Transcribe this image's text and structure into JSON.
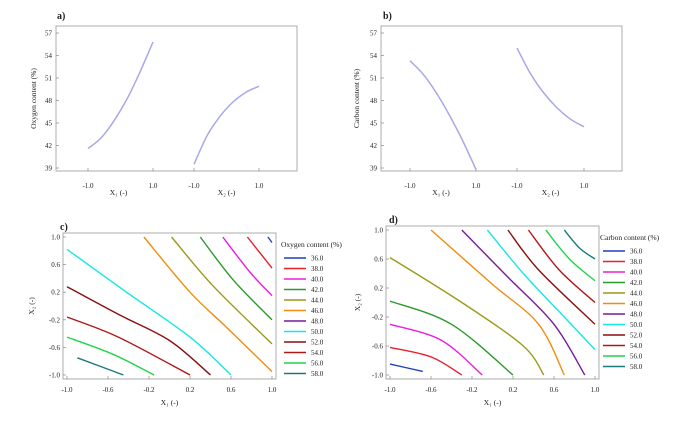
{
  "legend_colors": {
    "36.0": "#1f3fbf",
    "38.0": "#e8202a",
    "40.0": "#e81ee0",
    "42.0": "#2a9a2a",
    "44.0": "#9a9a1a",
    "46.0": "#f08c10",
    "48.0": "#7a1a9a",
    "50.0": "#18e6e6",
    "52.0": "#8a0f0f",
    "54.0": "#b01818",
    "56.0": "#22d44a",
    "58.0": "#1a7a7a"
  },
  "chart_data": [
    {
      "id": "a",
      "type": "line",
      "label": "a)",
      "ylabel": "Oxygen content (%)",
      "ylim": [
        39,
        57
      ],
      "yticks": [
        "39",
        "42",
        "45",
        "48",
        "51",
        "54",
        "57"
      ],
      "xticklabels": [
        "-1.0",
        "1.0",
        "-1.0",
        "1.0"
      ],
      "xlabels": [
        "X₁ (-)",
        "X₂ (-)"
      ],
      "series": [
        {
          "name": "X1",
          "x": [
            -1.0,
            -0.6,
            -0.2,
            0.2,
            0.6,
            1.0
          ],
          "y": [
            41.6,
            43.0,
            45.3,
            48.2,
            51.8,
            55.8
          ]
        },
        {
          "name": "X2",
          "x": [
            -1.0,
            -0.6,
            -0.2,
            0.2,
            0.6,
            1.0
          ],
          "y": [
            39.5,
            43.3,
            45.9,
            47.8,
            49.1,
            49.9
          ]
        }
      ]
    },
    {
      "id": "b",
      "type": "line",
      "label": "b)",
      "ylabel": "Carbon content (%)",
      "ylim": [
        39,
        57
      ],
      "yticks": [
        "39",
        "42",
        "45",
        "48",
        "51",
        "54",
        "57"
      ],
      "xticklabels": [
        "-1.0",
        "1.0",
        "-1.0",
        "1.0"
      ],
      "xlabels": [
        "X₁ (-)",
        "X₂ (-)"
      ],
      "series": [
        {
          "name": "X1",
          "x": [
            -1.0,
            -0.6,
            -0.2,
            0.2,
            0.6,
            1.0
          ],
          "y": [
            53.3,
            51.5,
            49.0,
            46.0,
            42.6,
            38.8
          ]
        },
        {
          "name": "X2",
          "x": [
            -1.0,
            -0.6,
            -0.2,
            0.2,
            0.6,
            1.0
          ],
          "y": [
            55.0,
            51.6,
            49.0,
            47.0,
            45.5,
            44.5
          ]
        }
      ]
    },
    {
      "id": "c",
      "type": "contour",
      "label": "c)",
      "xlabel": "X₁ (-)",
      "ylabel": "X₂ (-)",
      "xlim": [
        -1,
        1
      ],
      "ylim": [
        -1,
        1
      ],
      "xticks": [
        "-1.0",
        "-0.6",
        "-0.2",
        "0.2",
        "0.6",
        "1.0"
      ],
      "yticks": [
        "-1.0",
        "-0.6",
        "-0.2",
        "0.2",
        "0.6",
        "1.0"
      ],
      "legend_title": "Oxygen content (%)",
      "levels": [
        "36.0",
        "38.0",
        "40.0",
        "42.0",
        "44.0",
        "46.0",
        "48.0",
        "50.0",
        "52.0",
        "54.0",
        "56.0",
        "58.0"
      ],
      "lines": [
        {
          "level": "58.0",
          "points": [
            [
              -0.9,
              -0.75
            ],
            [
              -0.45,
              -1.0
            ]
          ]
        },
        {
          "level": "56.0",
          "points": [
            [
              -1.0,
              -0.45
            ],
            [
              -0.55,
              -0.7
            ],
            [
              -0.15,
              -1.0
            ]
          ]
        },
        {
          "level": "54.0",
          "points": [
            [
              -1.0,
              -0.16
            ],
            [
              -0.5,
              -0.45
            ],
            [
              0.2,
              -1.0
            ]
          ]
        },
        {
          "level": "52.0",
          "points": [
            [
              -1.0,
              0.28
            ],
            [
              -0.5,
              -0.12
            ],
            [
              0.0,
              -0.5
            ],
            [
              0.4,
              -1.0
            ]
          ]
        },
        {
          "level": "50.0",
          "points": [
            [
              -1.0,
              0.82
            ],
            [
              -0.4,
              0.18
            ],
            [
              0.2,
              -0.45
            ],
            [
              0.6,
              -1.0
            ]
          ]
        },
        {
          "level": "46.0",
          "points": [
            [
              -0.25,
              1.0
            ],
            [
              0.2,
              0.2
            ],
            [
              0.55,
              -0.3
            ],
            [
              1.0,
              -0.95
            ]
          ]
        },
        {
          "level": "44.0",
          "points": [
            [
              0.02,
              1.0
            ],
            [
              0.42,
              0.3
            ],
            [
              1.0,
              -0.55
            ]
          ]
        },
        {
          "level": "42.0",
          "points": [
            [
              0.3,
              1.0
            ],
            [
              0.62,
              0.38
            ],
            [
              1.0,
              -0.2
            ]
          ]
        },
        {
          "level": "40.0",
          "points": [
            [
              0.52,
              1.0
            ],
            [
              0.78,
              0.5
            ],
            [
              1.0,
              0.15
            ]
          ]
        },
        {
          "level": "38.0",
          "points": [
            [
              0.76,
              1.0
            ],
            [
              1.0,
              0.55
            ]
          ]
        },
        {
          "level": "36.0",
          "points": [
            [
              0.96,
              1.0
            ],
            [
              1.0,
              0.92
            ]
          ]
        }
      ]
    },
    {
      "id": "d",
      "type": "contour",
      "label": "d)",
      "xlabel": "X₁ (-)",
      "ylabel": "X₂ (-)",
      "xlim": [
        -1,
        1
      ],
      "ylim": [
        -1,
        1
      ],
      "xticks": [
        "-1.0",
        "-0.6",
        "-0.2",
        "0.2",
        "0.6",
        "1.0"
      ],
      "yticks": [
        "-1.0",
        "-0.6",
        "-0.2",
        "0.2",
        "0.6",
        "1.0"
      ],
      "legend_title": "Carbon content (%)",
      "levels": [
        "36.0",
        "38.0",
        "40.0",
        "42.0",
        "44.0",
        "46.0",
        "48.0",
        "50.0",
        "52.0",
        "54.0",
        "56.0",
        "58.0"
      ],
      "lines": [
        {
          "level": "36.0",
          "points": [
            [
              -1.0,
              -0.85
            ],
            [
              -0.68,
              -0.95
            ]
          ]
        },
        {
          "level": "38.0",
          "points": [
            [
              -1.0,
              -0.62
            ],
            [
              -0.6,
              -0.75
            ],
            [
              -0.3,
              -1.0
            ]
          ]
        },
        {
          "level": "40.0",
          "points": [
            [
              -1.0,
              -0.3
            ],
            [
              -0.5,
              -0.52
            ],
            [
              -0.1,
              -1.0
            ]
          ]
        },
        {
          "level": "42.0",
          "points": [
            [
              -1.0,
              0.02
            ],
            [
              -0.4,
              -0.3
            ],
            [
              0.2,
              -1.0
            ]
          ]
        },
        {
          "level": "44.0",
          "points": [
            [
              -1.0,
              0.62
            ],
            [
              -0.3,
              0.0
            ],
            [
              0.3,
              -0.6
            ],
            [
              0.5,
              -1.0
            ]
          ]
        },
        {
          "level": "46.0",
          "points": [
            [
              -0.6,
              1.0
            ],
            [
              0.0,
              0.25
            ],
            [
              0.45,
              -0.3
            ],
            [
              0.7,
              -1.0
            ]
          ]
        },
        {
          "level": "48.0",
          "points": [
            [
              -0.3,
              1.0
            ],
            [
              0.15,
              0.35
            ],
            [
              0.6,
              -0.3
            ],
            [
              0.9,
              -1.0
            ]
          ]
        },
        {
          "level": "50.0",
          "points": [
            [
              -0.05,
              1.0
            ],
            [
              0.3,
              0.4
            ],
            [
              0.7,
              -0.2
            ],
            [
              1.0,
              -0.65
            ]
          ]
        },
        {
          "level": "52.0",
          "points": [
            [
              0.15,
              1.0
            ],
            [
              0.45,
              0.45
            ],
            [
              1.0,
              -0.3
            ]
          ]
        },
        {
          "level": "54.0",
          "points": [
            [
              0.35,
              1.0
            ],
            [
              0.65,
              0.45
            ],
            [
              1.0,
              0.0
            ]
          ]
        },
        {
          "level": "56.0",
          "points": [
            [
              0.52,
              1.0
            ],
            [
              0.75,
              0.6
            ],
            [
              1.0,
              0.3
            ]
          ]
        },
        {
          "level": "58.0",
          "points": [
            [
              0.7,
              1.0
            ],
            [
              0.85,
              0.75
            ],
            [
              1.0,
              0.6
            ]
          ]
        }
      ]
    }
  ]
}
